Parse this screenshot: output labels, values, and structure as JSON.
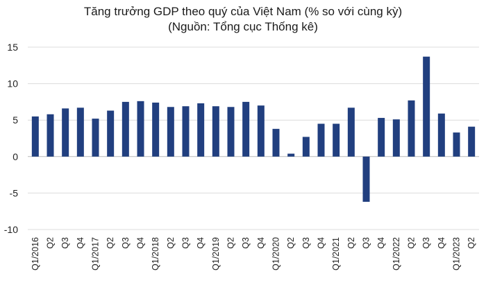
{
  "chart_data": {
    "type": "bar",
    "title": "Tăng trưởng GDP theo quý của Việt Nam (% so với cùng kỳ)",
    "subtitle": "(Nguồn: Tổng cục Thống kê)",
    "xlabel": "",
    "ylabel": "",
    "ylim": [
      -10,
      15
    ],
    "yticks": [
      "15",
      "10",
      "5",
      "0",
      "-5",
      "-10"
    ],
    "grid": "horizontal",
    "bar_color": "#213f7f",
    "categories": [
      "Q1/2016",
      "Q2",
      "Q3",
      "Q4",
      "Q1/2017",
      "Q2",
      "Q3",
      "Q4",
      "Q1/2018",
      "Q2",
      "Q3",
      "Q4",
      "Q1/2019",
      "Q2",
      "Q3",
      "Q4",
      "Q1/2020",
      "Q2",
      "Q3",
      "Q4",
      "Q1/2021",
      "Q2",
      "Q3",
      "Q4",
      "Q1/2022",
      "Q2",
      "Q3",
      "Q4",
      "Q1/2023",
      "Q2"
    ],
    "values": [
      5.5,
      5.8,
      6.6,
      6.7,
      5.2,
      6.3,
      7.5,
      7.6,
      7.4,
      6.8,
      6.9,
      7.3,
      6.9,
      6.8,
      7.5,
      7.0,
      3.8,
      0.4,
      2.7,
      4.5,
      4.5,
      6.7,
      -6.2,
      5.3,
      5.1,
      7.7,
      13.7,
      5.9,
      3.3,
      4.1
    ]
  }
}
